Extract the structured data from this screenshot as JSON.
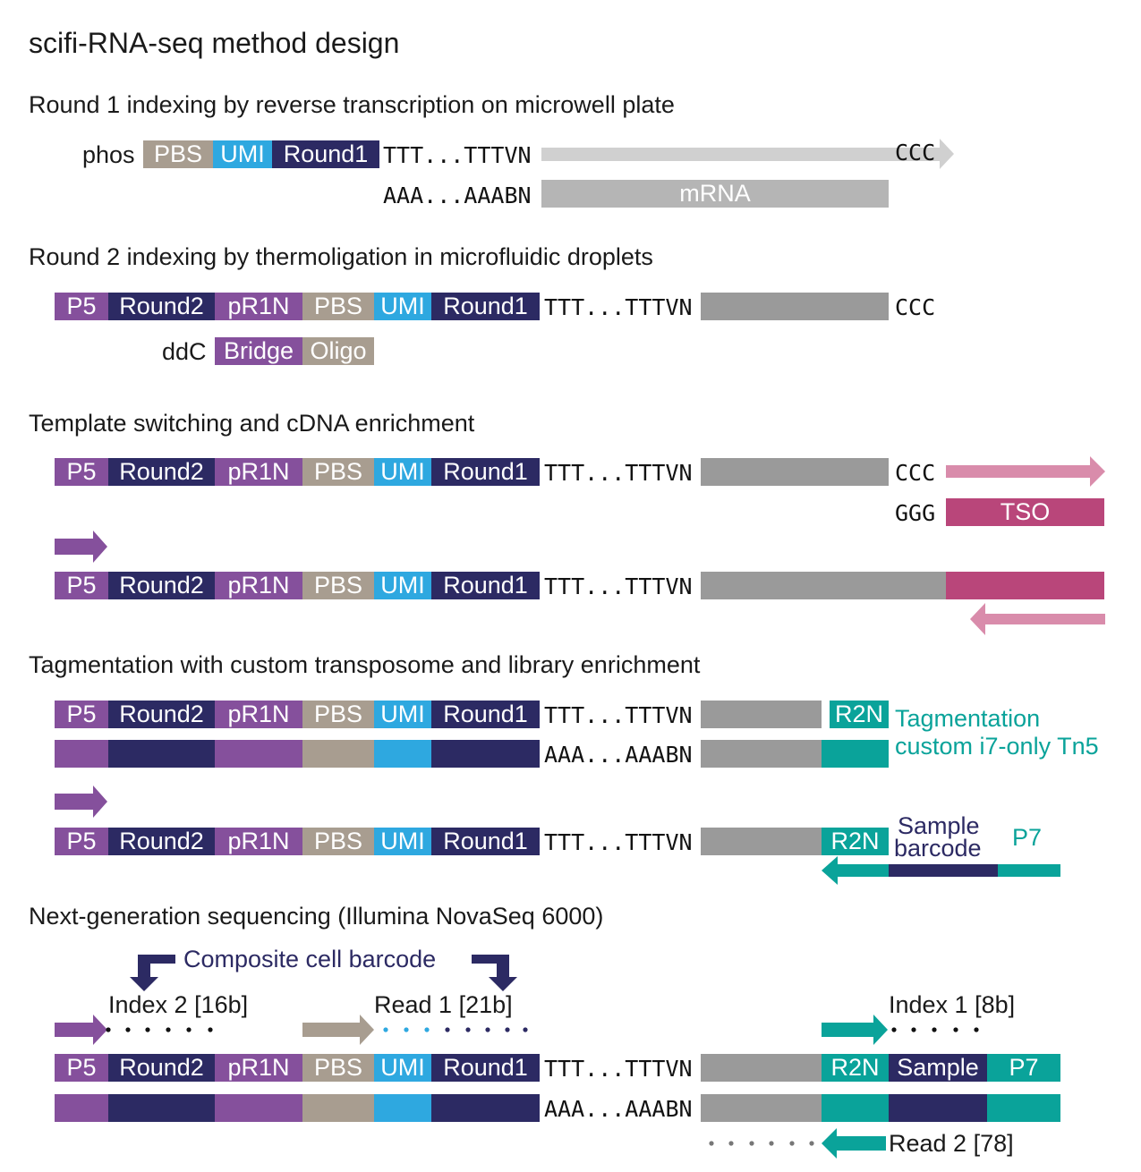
{
  "title": "scifi-RNA-seq method design",
  "steps": {
    "s1": "Round 1 indexing by reverse transcription on microwell plate",
    "s2": "Round 2 indexing by thermoligation in microfluidic droplets",
    "s3": "Template switching and cDNA enrichment",
    "s4": "Tagmentation with custom transposome and library enrichment",
    "s5": "Next-generation sequencing (Illumina NovaSeq 6000)"
  },
  "seq": {
    "polyT": "TTT...TTTVN",
    "polyA": "AAA...AAABN",
    "ccc": "CCC",
    "ggg": "GGG"
  },
  "labels": {
    "phos": "phos",
    "ddC": "ddC",
    "P5": "P5",
    "Round2": "Round2",
    "pR1N": "pR1N",
    "PBS": "PBS",
    "UMI": "UMI",
    "Round1": "Round1",
    "mRNA": "mRNA",
    "Bridge": "Bridge",
    "Oligo": "Oligo",
    "TSO": "TSO",
    "R2N": "R2N",
    "Sample": "Sample",
    "P7": "P7",
    "tag_line1": "Tagmentation",
    "tag_line2": "custom i7-only Tn5",
    "sample_barcode_line1": "Sample",
    "sample_barcode_line2": "barcode",
    "composite": "Composite cell barcode",
    "index2": "Index 2 [16b]",
    "read1": "Read 1 [21b]",
    "index1": "Index 1 [8b]",
    "read2": "Read 2 [78]"
  },
  "colors": {
    "purple": "#85509c",
    "navy": "#2c2a63",
    "tan": "#a89d90",
    "blue": "#2ea8e0",
    "gray": "#9a9a9a",
    "lightgray": "#b5b5b5",
    "arrowgray": "#d0d0d0",
    "pink": "#d98cab",
    "magenta": "#b9467a",
    "teal": "#0aa39a"
  }
}
